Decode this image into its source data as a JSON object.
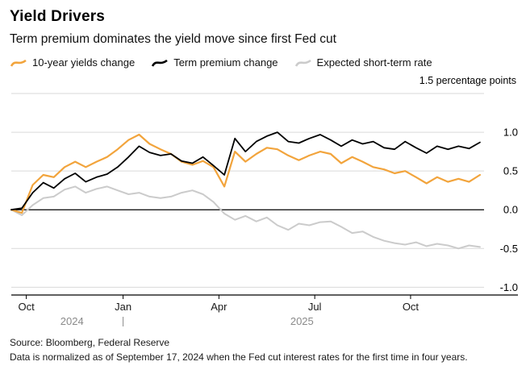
{
  "header": {
    "title": "Yield Drivers",
    "subtitle": "Term premium dominates the yield move since first Fed cut"
  },
  "legend": {
    "items": [
      {
        "label": "10-year yields change",
        "color": "#F2A43C"
      },
      {
        "label": "Term premium change",
        "color": "#000000"
      },
      {
        "label": "Expected short-term rate",
        "color": "#CBCBCB"
      }
    ]
  },
  "axis": {
    "unit_label": "1.5 percentage points"
  },
  "chart_data": {
    "type": "line",
    "title": "Yield Drivers",
    "subtitle": "Term premium dominates the yield move since first Fed cut",
    "ylabel": "percentage points",
    "xlabel": "",
    "ylim": [
      -1.1,
      1.5
    ],
    "grid": true,
    "grid_color": "#d9d9d9",
    "zero_line_color": "#000000",
    "yticks": [
      {
        "value": 1.5,
        "label": ""
      },
      {
        "value": 1.0,
        "label": "1.0"
      },
      {
        "value": 0.5,
        "label": "0.5"
      },
      {
        "value": 0.0,
        "label": "0.0"
      },
      {
        "value": -0.5,
        "label": "-0.5"
      },
      {
        "value": -1.0,
        "label": "-1.0"
      }
    ],
    "x_unit": "months since 2024-09-17 (Fed first cut, normalization date)",
    "x_max": 14.8,
    "xticks": [
      {
        "value": 0.47,
        "label": "Oct"
      },
      {
        "value": 3.5,
        "label": "Jan"
      },
      {
        "value": 6.5,
        "label": "Apr"
      },
      {
        "value": 9.5,
        "label": "Jul"
      },
      {
        "value": 12.5,
        "label": "Oct"
      }
    ],
    "year_labels": [
      {
        "value": 1.9,
        "label": "2024"
      },
      {
        "value": 9.1,
        "label": "2025"
      }
    ],
    "year_divider_value": 3.5,
    "x": [
      0,
      0.33,
      0.67,
      1,
      1.33,
      1.67,
      2,
      2.33,
      2.67,
      3,
      3.33,
      3.67,
      4,
      4.33,
      4.67,
      5,
      5.33,
      5.67,
      6,
      6.33,
      6.67,
      7,
      7.33,
      7.67,
      8,
      8.33,
      8.67,
      9,
      9.33,
      9.67,
      10,
      10.33,
      10.67,
      11,
      11.33,
      11.67,
      12,
      12.33,
      12.67,
      13,
      13.33,
      13.67,
      14,
      14.33,
      14.67
    ],
    "series": [
      {
        "name": "10-year yields change",
        "color": "#F2A43C",
        "values": [
          0,
          -0.04,
          0.32,
          0.45,
          0.42,
          0.55,
          0.62,
          0.55,
          0.62,
          0.68,
          0.78,
          0.9,
          0.97,
          0.85,
          0.78,
          0.72,
          0.62,
          0.58,
          0.63,
          0.55,
          0.3,
          0.75,
          0.62,
          0.72,
          0.8,
          0.78,
          0.7,
          0.64,
          0.7,
          0.75,
          0.72,
          0.6,
          0.68,
          0.62,
          0.55,
          0.52,
          0.47,
          0.5,
          0.42,
          0.34,
          0.42,
          0.36,
          0.4,
          0.36,
          0.45
        ]
      },
      {
        "name": "Term premium change",
        "color": "#000000",
        "values": [
          0,
          0.02,
          0.22,
          0.35,
          0.28,
          0.4,
          0.47,
          0.36,
          0.42,
          0.46,
          0.55,
          0.68,
          0.82,
          0.74,
          0.7,
          0.72,
          0.63,
          0.6,
          0.68,
          0.57,
          0.45,
          0.92,
          0.75,
          0.88,
          0.95,
          1.0,
          0.88,
          0.86,
          0.92,
          0.97,
          0.9,
          0.82,
          0.9,
          0.85,
          0.88,
          0.8,
          0.78,
          0.88,
          0.8,
          0.73,
          0.82,
          0.78,
          0.82,
          0.79,
          0.87
        ]
      },
      {
        "name": "Expected short-term rate",
        "color": "#CBCBCB",
        "values": [
          0,
          -0.07,
          0.06,
          0.15,
          0.17,
          0.26,
          0.3,
          0.22,
          0.27,
          0.3,
          0.25,
          0.2,
          0.22,
          0.17,
          0.15,
          0.17,
          0.22,
          0.25,
          0.2,
          0.1,
          -0.05,
          -0.13,
          -0.08,
          -0.15,
          -0.1,
          -0.2,
          -0.26,
          -0.18,
          -0.2,
          -0.16,
          -0.15,
          -0.22,
          -0.3,
          -0.28,
          -0.35,
          -0.4,
          -0.43,
          -0.45,
          -0.42,
          -0.47,
          -0.44,
          -0.46,
          -0.5,
          -0.46,
          -0.48
        ]
      }
    ]
  },
  "footer": {
    "source": "Source: Bloomberg, Federal Reserve",
    "note": "Data is normalized as of September 17, 2024 when the Fed cut interest rates for the first time in four years."
  }
}
